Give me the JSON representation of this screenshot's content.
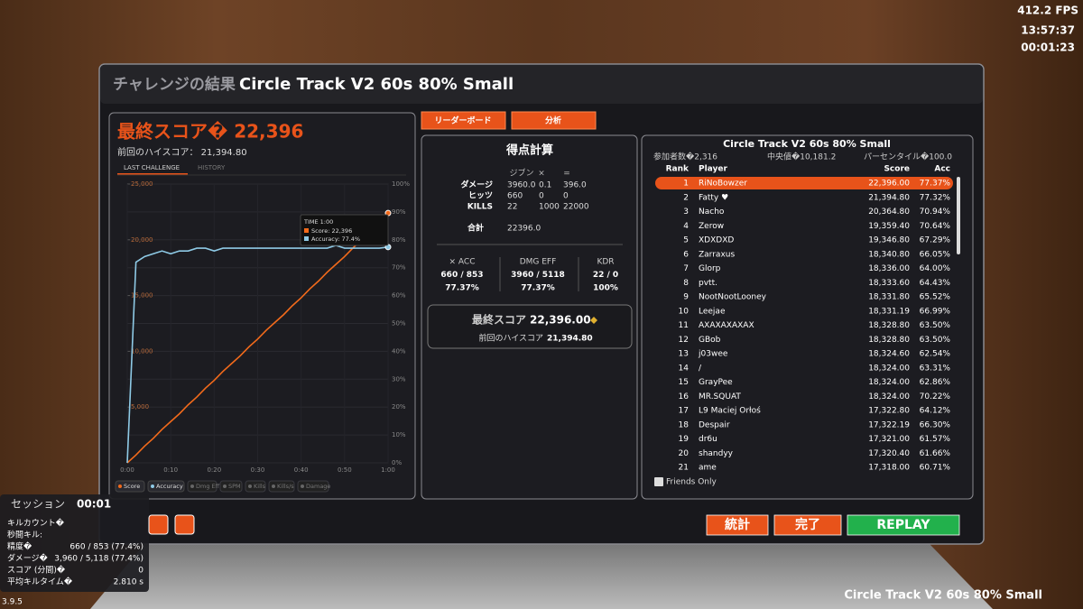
{
  "hud": {
    "fps": "412.2 FPS",
    "clock": "13:57:37",
    "timer": "00:01:23"
  },
  "header": {
    "prefix": "チャレンジの結果",
    "title": "Circle Track V2 60s 80% Small"
  },
  "score_panel": {
    "title": "最終スコア� 22,396",
    "previous": "前回のハイスコア： 21,394.80",
    "tabs": [
      "LAST CHALLENGE",
      "HISTORY"
    ]
  },
  "chart_data": {
    "type": "line",
    "x": [
      0,
      2,
      4,
      6,
      8,
      10,
      12,
      14,
      16,
      18,
      20,
      22,
      24,
      26,
      28,
      30,
      32,
      34,
      36,
      38,
      40,
      42,
      44,
      46,
      48,
      50,
      52,
      54,
      56,
      58,
      60
    ],
    "series": [
      {
        "name": "Score",
        "color": "#f26a1b",
        "values": [
          0,
          700,
          1500,
          2200,
          3000,
          3700,
          4400,
          5200,
          5900,
          6700,
          7400,
          8200,
          8900,
          9600,
          10400,
          11100,
          11900,
          12600,
          13300,
          14100,
          14800,
          15600,
          16300,
          17100,
          17800,
          18500,
          19300,
          20000,
          20800,
          21600,
          22396
        ]
      },
      {
        "name": "Accuracy",
        "color": "#8ecae6",
        "axis": "y2",
        "values": [
          0,
          72,
          74,
          75,
          76,
          75,
          76,
          76,
          77,
          77,
          76,
          77,
          77,
          77,
          77,
          77,
          77,
          77,
          77,
          77,
          77,
          77,
          77,
          77,
          78,
          77,
          77,
          77,
          77,
          77,
          77.4
        ]
      }
    ],
    "xlim": [
      0,
      60
    ],
    "xticks": [
      {
        "value": 0,
        "label": "0:00"
      },
      {
        "value": 10,
        "label": "0:10"
      },
      {
        "value": 20,
        "label": "0:20"
      },
      {
        "value": 30,
        "label": "0:30"
      },
      {
        "value": 40,
        "label": "0:40"
      },
      {
        "value": 50,
        "label": "0:50"
      },
      {
        "value": 60,
        "label": "1:00"
      }
    ],
    "ylim": [
      0,
      25000
    ],
    "yticks": [
      {
        "value": 5000,
        "label": "5,000"
      },
      {
        "value": 10000,
        "label": "10,000"
      },
      {
        "value": 15000,
        "label": "15,000"
      },
      {
        "value": 20000,
        "label": "20,000"
      },
      {
        "value": 25000,
        "label": "25,000"
      }
    ],
    "y2lim": [
      0,
      100
    ],
    "y2ticks": [
      {
        "value": 0,
        "label": "0%"
      },
      {
        "value": 10,
        "label": "10%"
      },
      {
        "value": 20,
        "label": "20%"
      },
      {
        "value": 30,
        "label": "30%"
      },
      {
        "value": 40,
        "label": "40%"
      },
      {
        "value": 50,
        "label": "50%"
      },
      {
        "value": 60,
        "label": "60%"
      },
      {
        "value": 70,
        "label": "70%"
      },
      {
        "value": 80,
        "label": "80%"
      },
      {
        "value": 90,
        "label": "90%"
      },
      {
        "value": 100,
        "label": "100%"
      }
    ],
    "grid": true,
    "tooltip": {
      "title": "TIME 1:00",
      "lines": [
        "Score: 22,396",
        "Accuracy: 77.4%"
      ]
    },
    "inactive_legend": [
      "Dmg Eff",
      "SPM",
      "Kills",
      "Kills/s",
      "Damage"
    ]
  },
  "tabs": [
    "リーダーボード",
    "分析"
  ],
  "breakdown": {
    "title": "得点計算",
    "columns": [
      "ジブン",
      "×",
      "="
    ],
    "rows": [
      [
        "ダメージ",
        "3960.0",
        "0.1",
        "396.0"
      ],
      [
        "ヒッツ",
        "660",
        "0",
        "0"
      ],
      [
        "KILLS",
        "22",
        "1000",
        "22000"
      ]
    ],
    "total": [
      "合計",
      "22396.0"
    ],
    "stats": [
      [
        "× ACC",
        "660 / 853",
        "77.37%"
      ],
      [
        "DMG EFF",
        "3960 / 5118",
        "77.37%"
      ],
      [
        "KDR",
        "22 / 0",
        "100%"
      ]
    ],
    "final_label": "最終スコア",
    "final_value": "22,396.00",
    "previous_label": "前回のハイスコア",
    "previous_value": "21,394.80"
  },
  "leaderboard": {
    "title": "Circle Track V2 60s 80% Small",
    "participants": "参加者数�2,316",
    "median": "中央値�10,181.2",
    "percentile": "パーセンタイル�100.0",
    "columns": [
      "Rank",
      "Player",
      "Score",
      "Acc"
    ],
    "rows": [
      [
        "1",
        "RiNoBowzer",
        "22,396.00",
        "77.37%"
      ],
      [
        "2",
        "Fatty ♥",
        "21,394.80",
        "77.32%"
      ],
      [
        "3",
        "Nacho",
        "20,364.80",
        "70.94%"
      ],
      [
        "4",
        "Zerow",
        "19,359.40",
        "70.64%"
      ],
      [
        "5",
        "XDXDXD",
        "19,346.80",
        "67.29%"
      ],
      [
        "6",
        "Zarraxus",
        "18,340.80",
        "66.05%"
      ],
      [
        "7",
        "Glorp",
        "18,336.00",
        "64.00%"
      ],
      [
        "8",
        "pvtt.",
        "18,333.60",
        "64.43%"
      ],
      [
        "9",
        "NootNootLooney",
        "18,331.80",
        "65.52%"
      ],
      [
        "10",
        "Leejae",
        "18,331.19",
        "66.99%"
      ],
      [
        "11",
        "AXAXAXAXAX",
        "18,328.80",
        "63.50%"
      ],
      [
        "12",
        "GBob",
        "18,328.80",
        "63.50%"
      ],
      [
        "13",
        "j03wee",
        "18,324.60",
        "62.54%"
      ],
      [
        "14",
        "/",
        "18,324.00",
        "63.31%"
      ],
      [
        "15",
        "GrayPee",
        "18,324.00",
        "62.86%"
      ],
      [
        "16",
        "MR.SQUAT",
        "18,324.00",
        "70.22%"
      ],
      [
        "17",
        "L9 Maciej Orłoś",
        "17,322.80",
        "64.12%"
      ],
      [
        "18",
        "Despair",
        "17,322.19",
        "66.30%"
      ],
      [
        "19",
        "dr6u",
        "17,321.00",
        "61.57%"
      ],
      [
        "20",
        "shandyy",
        "17,320.40",
        "61.66%"
      ],
      [
        "21",
        "ame",
        "17,318.00",
        "60.71%"
      ]
    ],
    "friends_only": "Friends Only"
  },
  "buttons": [
    "統計",
    "完了",
    "REPLAY"
  ],
  "session": {
    "title": "セッション",
    "time": "00:01",
    "rows": [
      [
        "キルカウント�"
      ],
      [
        "秒間キル:"
      ],
      [
        "精度�",
        "660 / 853 (77.4%)"
      ],
      [
        "ダメージ�",
        "3,960 / 5,118 (77.4%)"
      ],
      [
        "スコア (分間)�",
        "0"
      ],
      [
        "平均キルタイム�",
        "2.810 s"
      ]
    ]
  },
  "version": "3.9.5",
  "footer": "Circle Track V2 60s 80% Small"
}
